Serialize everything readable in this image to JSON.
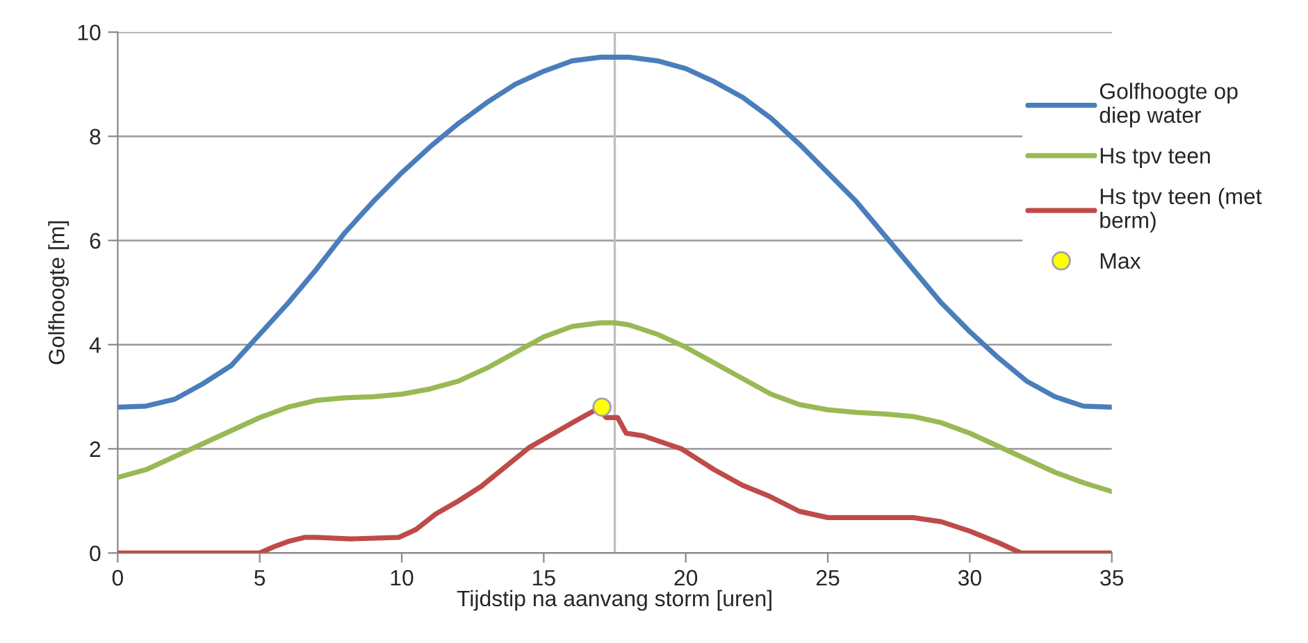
{
  "chart_data": {
    "type": "line",
    "xlabel": "Tijdstip na aanvang storm [uren]",
    "ylabel": "Golfhoogte [m]",
    "xlim": [
      0,
      35
    ],
    "xticks": [
      0,
      5,
      10,
      15,
      20,
      25,
      30,
      35
    ],
    "ylim": [
      0,
      10
    ],
    "yticks": [
      0,
      2,
      4,
      6,
      8,
      10
    ],
    "grid": "y",
    "legend": "right",
    "marker": "none",
    "line_style": "solid",
    "ref_lines": [
      {
        "axis": "x",
        "value": 17.5,
        "color": "#bfbfbf"
      }
    ],
    "series": [
      {
        "name": "Golfhoogte op\ndiep water",
        "color": "#4a7ebb",
        "x": [
          0,
          1,
          2,
          3,
          4,
          5,
          6,
          7,
          8,
          9,
          10,
          11,
          12,
          13,
          14,
          15,
          16,
          17,
          18,
          19,
          20,
          21,
          22,
          23,
          24,
          25,
          26,
          27,
          28,
          29,
          30,
          31,
          32,
          33,
          34,
          35
        ],
        "values": [
          2.8,
          2.82,
          2.95,
          3.25,
          3.6,
          4.2,
          4.8,
          5.45,
          6.15,
          6.75,
          7.3,
          7.8,
          8.25,
          8.65,
          9.0,
          9.25,
          9.45,
          9.52,
          9.52,
          9.45,
          9.3,
          9.05,
          8.75,
          8.35,
          7.85,
          7.3,
          6.75,
          6.1,
          5.45,
          4.8,
          4.25,
          3.75,
          3.3,
          3.0,
          2.82,
          2.8
        ]
      },
      {
        "name": "Hs tpv teen",
        "color": "#98b954",
        "x": [
          0,
          1,
          2,
          3,
          4,
          5,
          6,
          7,
          8,
          9,
          10,
          11,
          12,
          13,
          14,
          15,
          16,
          17,
          17.5,
          18,
          19,
          20,
          21,
          22,
          23,
          24,
          25,
          26,
          27,
          28,
          29,
          30,
          31,
          32,
          33,
          34,
          35
        ],
        "values": [
          1.45,
          1.6,
          1.85,
          2.1,
          2.35,
          2.6,
          2.8,
          2.93,
          2.98,
          3.0,
          3.05,
          3.15,
          3.3,
          3.55,
          3.85,
          4.15,
          4.35,
          4.42,
          4.42,
          4.38,
          4.2,
          3.95,
          3.65,
          3.35,
          3.05,
          2.85,
          2.75,
          2.7,
          2.67,
          2.62,
          2.5,
          2.3,
          2.05,
          1.8,
          1.55,
          1.35,
          1.18
        ]
      },
      {
        "name": "Hs tpv teen (met\nberm)",
        "color": "#be4b48",
        "x": [
          0,
          5,
          5.5,
          6,
          6.6,
          7,
          8.2,
          9.9,
          10.5,
          11.2,
          12,
          12.8,
          14.5,
          16.1,
          16.9,
          17.2,
          17.6,
          17.9,
          18.5,
          19.85,
          21,
          22,
          22.9,
          24,
          25,
          28,
          29,
          30,
          31,
          31.8,
          35
        ],
        "values": [
          0,
          0,
          0.12,
          0.22,
          0.3,
          0.3,
          0.27,
          0.3,
          0.45,
          0.75,
          1.0,
          1.28,
          2.03,
          2.53,
          2.77,
          2.6,
          2.6,
          2.3,
          2.25,
          2.0,
          1.6,
          1.3,
          1.1,
          0.8,
          0.68,
          0.68,
          0.6,
          0.42,
          0.2,
          0,
          0
        ]
      },
      {
        "name": "Max",
        "type": "scatter",
        "marker": "circle",
        "color": "#ffff00",
        "x": [
          17.05
        ],
        "values": [
          2.8
        ]
      }
    ]
  }
}
